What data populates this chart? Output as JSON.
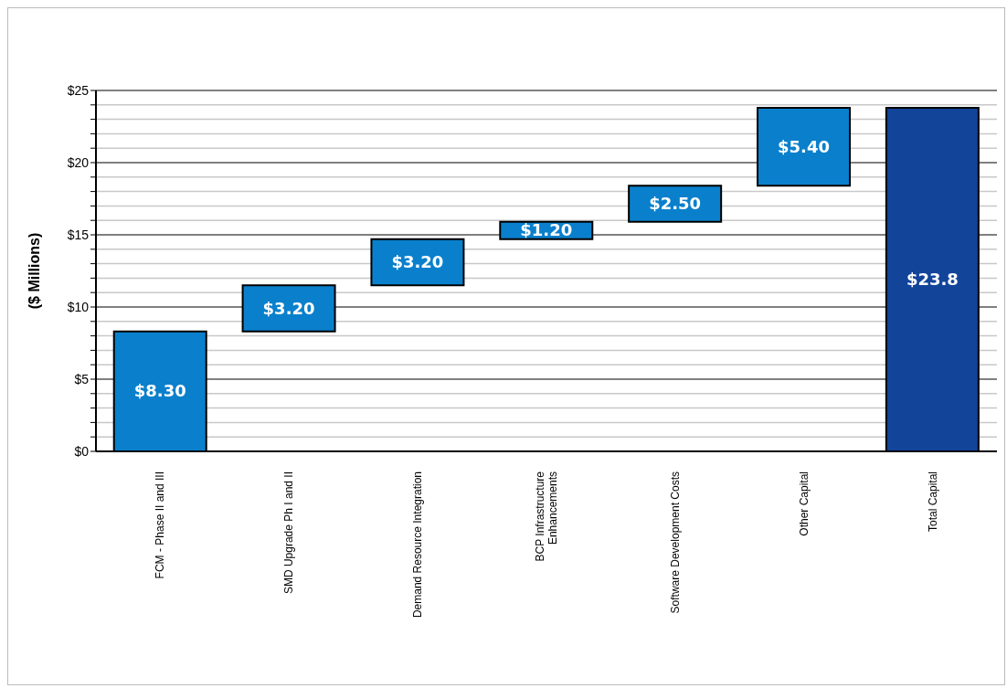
{
  "chart_data": {
    "type": "bar",
    "ylabel": "($ Millions)",
    "categories": [
      "FCM - Phase II and III",
      "SMD Upgrade Ph I and II",
      "Demand Resource Integration",
      "BCP Infrastructure Enhancements",
      "Software Development Costs",
      "Other Capital",
      "Total Capital"
    ],
    "values": [
      8.3,
      3.2,
      3.2,
      1.2,
      2.5,
      5.4,
      23.8
    ],
    "base": [
      0,
      8.3,
      11.5,
      14.7,
      15.9,
      18.4,
      0
    ],
    "colors": [
      "#0a80cc",
      "#0a80cc",
      "#0a80cc",
      "#0a80cc",
      "#0a80cc",
      "#0a80cc",
      "#12449a"
    ],
    "value_labels": [
      "$8.30",
      "$3.20",
      "$3.20",
      "$1.20",
      "$2.50",
      "$5.40",
      "$23.8"
    ],
    "ylim": [
      0,
      25
    ],
    "yticks": [
      {
        "value": 0,
        "label": "$0"
      },
      {
        "value": 1,
        "label": null
      },
      {
        "value": 2,
        "label": null
      },
      {
        "value": 3,
        "label": null
      },
      {
        "value": 4,
        "label": null
      },
      {
        "value": 5,
        "label": "$5"
      },
      {
        "value": 6,
        "label": null
      },
      {
        "value": 7,
        "label": null
      },
      {
        "value": 8,
        "label": null
      },
      {
        "value": 9,
        "label": null
      },
      {
        "value": 10,
        "label": "$10"
      },
      {
        "value": 11,
        "label": null
      },
      {
        "value": 12,
        "label": null
      },
      {
        "value": 13,
        "label": null
      },
      {
        "value": 14,
        "label": null
      },
      {
        "value": 15,
        "label": "$15"
      },
      {
        "value": 16,
        "label": null
      },
      {
        "value": 17,
        "label": null
      },
      {
        "value": 18,
        "label": null
      },
      {
        "value": 19,
        "label": null
      },
      {
        "value": 20,
        "label": "$20"
      },
      {
        "value": 21,
        "label": null
      },
      {
        "value": 22,
        "label": null
      },
      {
        "value": 23,
        "label": null
      },
      {
        "value": 24,
        "label": null
      },
      {
        "value": 25,
        "label": "$25"
      }
    ],
    "grid": "y",
    "legend": false
  }
}
